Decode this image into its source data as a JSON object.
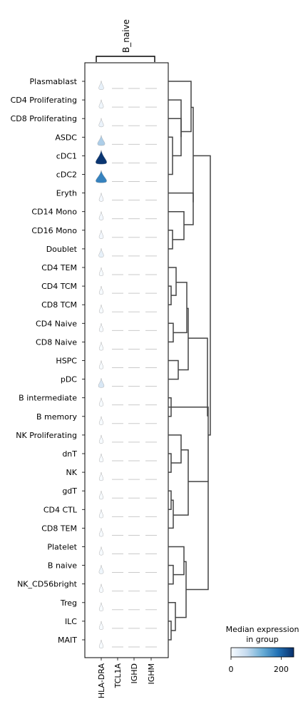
{
  "chart_data": {
    "type": "violin",
    "title": "",
    "group_label": "B_naive",
    "genes": [
      "HLA-DRA",
      "TCL1A",
      "IGHD",
      "IGHM"
    ],
    "cell_types": [
      "Plasmablast",
      "CD4 Proliferating",
      "CD8 Proliferating",
      "ASDC",
      "cDC1",
      "cDC2",
      "Eryth",
      "CD14 Mono",
      "CD16 Mono",
      "Doublet",
      "CD4 TEM",
      "CD4 TCM",
      "CD8 TCM",
      "CD4 Naive",
      "CD8 Naive",
      "HSPC",
      "pDC",
      "B intermediate",
      "B memory",
      "NK Proliferating",
      "dnT",
      "NK",
      "gdT",
      "CD4 CTL",
      "CD8 TEM",
      "Platelet",
      "B naive",
      "NK_CD56bright",
      "Treg",
      "ILC",
      "MAIT"
    ],
    "median_expression": [
      [
        20,
        0,
        0,
        0
      ],
      [
        10,
        0,
        0,
        0
      ],
      [
        15,
        0,
        0,
        0
      ],
      [
        80,
        0,
        0,
        0
      ],
      [
        245,
        0,
        0,
        0
      ],
      [
        170,
        0,
        0,
        0
      ],
      [
        5,
        0,
        0,
        0
      ],
      [
        5,
        0,
        0,
        0
      ],
      [
        5,
        0,
        0,
        0
      ],
      [
        20,
        0,
        0,
        0
      ],
      [
        0,
        0,
        0,
        0
      ],
      [
        0,
        0,
        0,
        0
      ],
      [
        0,
        0,
        0,
        0
      ],
      [
        0,
        0,
        0,
        0
      ],
      [
        0,
        0,
        0,
        0
      ],
      [
        0,
        0,
        0,
        0
      ],
      [
        40,
        0,
        0,
        0
      ],
      [
        0,
        0,
        0,
        0
      ],
      [
        0,
        0,
        0,
        0
      ],
      [
        0,
        0,
        0,
        0
      ],
      [
        0,
        0,
        0,
        0
      ],
      [
        0,
        0,
        0,
        0
      ],
      [
        0,
        0,
        0,
        0
      ],
      [
        0,
        0,
        0,
        0
      ],
      [
        0,
        0,
        0,
        0
      ],
      [
        0,
        0,
        0,
        0
      ],
      [
        10,
        0,
        0,
        0
      ],
      [
        0,
        0,
        0,
        0
      ],
      [
        0,
        0,
        0,
        0
      ],
      [
        0,
        0,
        0,
        0
      ],
      [
        0,
        0,
        0,
        0
      ]
    ],
    "colorbar": {
      "title": "Median expression\nin group",
      "colormap": "Blues",
      "range": [
        0,
        250
      ],
      "ticks": [
        "0",
        "200"
      ]
    },
    "dendrogram": true
  }
}
